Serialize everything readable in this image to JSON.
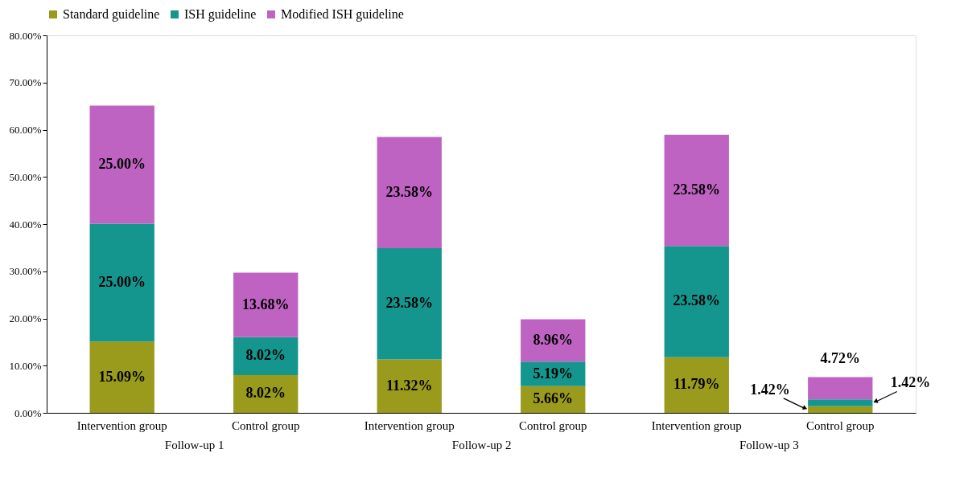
{
  "chart_data": {
    "type": "bar",
    "stacked": true,
    "categories": [
      "Intervention group",
      "Control group",
      "Intervention group",
      "Control group",
      "Intervention group",
      "Control group"
    ],
    "series": [
      {
        "name": "Standard guideline",
        "color": "#9a9a1c",
        "values": [
          15.09,
          8.02,
          11.32,
          5.66,
          11.79,
          1.42
        ],
        "value_labels": [
          "15.09%",
          "8.02%",
          "11.32%",
          "5.66%",
          "11.79%",
          "1.42%"
        ]
      },
      {
        "name": "ISH guideline",
        "color": "#14968f",
        "values": [
          25.0,
          8.02,
          23.58,
          5.19,
          23.58,
          1.42
        ],
        "value_labels": [
          "25.00%",
          "8.02%",
          "23.58%",
          "5.19%",
          "23.58%",
          "1.42%"
        ]
      },
      {
        "name": "Modified ISH guideline",
        "color": "#bf63c2",
        "values": [
          25.0,
          13.68,
          23.58,
          8.96,
          23.58,
          4.72
        ],
        "value_labels": [
          "25.00%",
          "13.68%",
          "23.58%",
          "8.96%",
          "23.58%",
          "4.72%"
        ]
      }
    ],
    "annotations": [
      "Follow-up 1",
      "Follow-up 2",
      "Follow-up 3"
    ],
    "ylim": [
      0,
      80
    ],
    "yticks": [
      {
        "value": 0,
        "label": "0.00%"
      },
      {
        "value": 10,
        "label": "10.00%"
      },
      {
        "value": 20,
        "label": "20.00%"
      },
      {
        "value": 30,
        "label": "30.00%"
      },
      {
        "value": 40,
        "label": "40.00%"
      },
      {
        "value": 50,
        "label": "50.00%"
      },
      {
        "value": 60,
        "label": "60.00%"
      },
      {
        "value": 70,
        "label": "70.00%"
      },
      {
        "value": 80,
        "label": "80.00%"
      }
    ],
    "grid": false,
    "legend": "top"
  }
}
